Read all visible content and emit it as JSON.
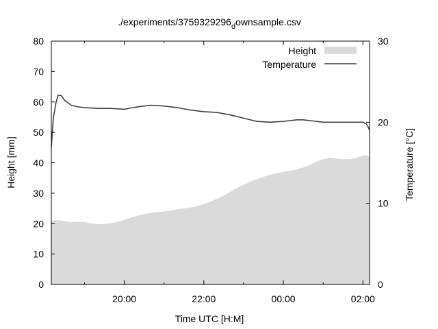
{
  "chart_data": {
    "type": "area",
    "title": "./experiments/3759329296",
    "title_subscript": "d",
    "title_suffix": "ownsample.csv",
    "xlabel": "Time UTC [H:M]",
    "ylabel": "Height [mm]",
    "y2label": "Temperature [°C]",
    "x_ticks": [
      "20:00",
      "22:00",
      "00:00",
      "02:00"
    ],
    "xlim": [
      "18:10",
      "02:10"
    ],
    "ylim": [
      0,
      80
    ],
    "y_ticks": [
      "0",
      "10",
      "20",
      "30",
      "40",
      "50",
      "60",
      "70",
      "80"
    ],
    "y2lim": [
      0,
      30
    ],
    "y2_ticks": [
      "0",
      "10",
      "20",
      "30"
    ],
    "grid": false,
    "legend_position": "top-right",
    "series": [
      {
        "name": "Height",
        "axis": "left",
        "style": "filled-area",
        "color": "#dadada",
        "x": [
          "18:10",
          "18:20",
          "18:30",
          "18:40",
          "18:50",
          "19:00",
          "19:10",
          "19:20",
          "19:30",
          "19:40",
          "19:50",
          "20:00",
          "20:10",
          "20:20",
          "20:30",
          "20:40",
          "20:50",
          "21:00",
          "21:10",
          "21:20",
          "21:30",
          "21:40",
          "21:50",
          "22:00",
          "22:10",
          "22:20",
          "22:30",
          "22:40",
          "22:50",
          "23:00",
          "23:10",
          "23:20",
          "23:30",
          "23:40",
          "23:50",
          "00:00",
          "00:10",
          "00:20",
          "00:30",
          "00:40",
          "00:50",
          "01:00",
          "01:10",
          "01:20",
          "01:30",
          "01:40",
          "01:50",
          "02:00",
          "02:05",
          "02:10"
        ],
        "values": [
          20.8,
          21.2,
          20.8,
          20.5,
          20.6,
          20.5,
          20.0,
          19.9,
          19.8,
          20.2,
          20.6,
          21.2,
          22.0,
          22.6,
          23.2,
          23.5,
          23.8,
          24.0,
          24.3,
          24.7,
          25.0,
          25.3,
          25.8,
          26.4,
          27.2,
          28.2,
          29.2,
          30.5,
          31.8,
          32.8,
          33.8,
          34.6,
          35.4,
          36.0,
          36.6,
          37.0,
          37.4,
          37.8,
          38.5,
          39.3,
          40.4,
          41.2,
          41.6,
          41.4,
          41.2,
          41.2,
          41.6,
          42.3,
          42.5,
          41.8
        ]
      },
      {
        "name": "Temperature",
        "axis": "right",
        "style": "line",
        "color": "#3f3f3f",
        "x": [
          "18:10",
          "18:13",
          "18:17",
          "18:20",
          "18:25",
          "18:30",
          "18:40",
          "18:50",
          "19:00",
          "19:20",
          "19:40",
          "20:00",
          "20:20",
          "20:40",
          "21:00",
          "21:20",
          "21:40",
          "22:00",
          "22:20",
          "22:40",
          "23:00",
          "23:20",
          "23:40",
          "00:00",
          "00:10",
          "00:20",
          "00:30",
          "00:40",
          "00:50",
          "01:00",
          "01:20",
          "01:40",
          "02:00",
          "02:05",
          "02:08",
          "02:10"
        ],
        "values": [
          16.9,
          20.5,
          22.4,
          23.3,
          23.3,
          22.7,
          22.1,
          21.9,
          21.8,
          21.7,
          21.7,
          21.6,
          21.9,
          22.1,
          22.0,
          21.8,
          21.5,
          21.3,
          21.2,
          20.9,
          20.5,
          20.1,
          20.0,
          20.1,
          20.2,
          20.3,
          20.3,
          20.2,
          20.1,
          20.0,
          20.0,
          20.0,
          20.0,
          19.8,
          19.4,
          19.0
        ]
      }
    ]
  }
}
